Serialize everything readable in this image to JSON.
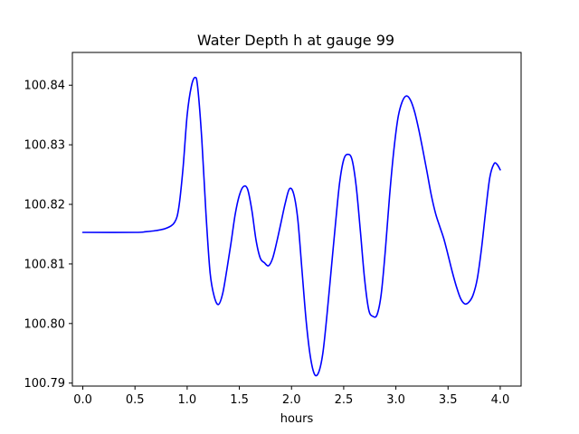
{
  "chart_data": {
    "type": "line",
    "title": "Water Depth h at gauge 99",
    "xlabel": "hours",
    "ylabel": "",
    "xlim": [
      -0.1,
      4.2
    ],
    "ylim": [
      100.7895,
      100.8455
    ],
    "xticks": [
      0.0,
      0.5,
      1.0,
      1.5,
      2.0,
      2.5,
      3.0,
      3.5,
      4.0
    ],
    "xtick_labels": [
      "0.0",
      "0.5",
      "1.0",
      "1.5",
      "2.0",
      "2.5",
      "3.0",
      "3.5",
      "4.0"
    ],
    "yticks": [
      100.79,
      100.8,
      100.81,
      100.82,
      100.83,
      100.84
    ],
    "ytick_labels": [
      "100.79",
      "100.80",
      "100.81",
      "100.82",
      "100.83",
      "100.84"
    ],
    "grid": false,
    "series": [
      {
        "color": "#0000ff",
        "x": [
          0.0,
          0.5,
          0.6,
          0.7,
          0.8,
          0.88,
          0.92,
          0.96,
          1.0,
          1.04,
          1.075,
          1.1,
          1.14,
          1.18,
          1.22,
          1.26,
          1.3,
          1.34,
          1.38,
          1.42,
          1.46,
          1.5,
          1.54,
          1.58,
          1.62,
          1.66,
          1.7,
          1.74,
          1.78,
          1.82,
          1.86,
          1.9,
          1.94,
          1.98,
          2.02,
          2.06,
          2.1,
          2.14,
          2.18,
          2.22,
          2.26,
          2.3,
          2.34,
          2.38,
          2.42,
          2.46,
          2.5,
          2.54,
          2.58,
          2.62,
          2.66,
          2.7,
          2.74,
          2.78,
          2.82,
          2.86,
          2.9,
          2.94,
          2.98,
          3.02,
          3.06,
          3.1,
          3.14,
          3.18,
          3.22,
          3.26,
          3.3,
          3.34,
          3.38,
          3.42,
          3.46,
          3.5,
          3.54,
          3.58,
          3.62,
          3.66,
          3.7,
          3.74,
          3.78,
          3.82,
          3.86,
          3.9,
          3.94,
          3.97,
          4.0
        ],
        "y": [
          100.8153,
          100.8153,
          100.8154,
          100.8156,
          100.816,
          100.817,
          100.8195,
          100.826,
          100.835,
          100.8398,
          100.8413,
          100.8398,
          100.831,
          100.8185,
          100.8085,
          100.8045,
          100.8032,
          100.805,
          100.809,
          100.8135,
          100.8183,
          100.8215,
          100.823,
          100.8225,
          100.819,
          100.814,
          100.811,
          100.8102,
          100.8097,
          100.811,
          100.8138,
          100.817,
          100.8202,
          100.8226,
          100.8218,
          100.8175,
          100.809,
          100.8005,
          100.7945,
          100.7915,
          100.7918,
          100.795,
          100.8015,
          100.809,
          100.8165,
          100.8235,
          100.8275,
          100.8284,
          100.8275,
          100.823,
          100.8155,
          100.8075,
          100.8023,
          100.8012,
          100.8015,
          100.805,
          100.8125,
          100.8215,
          100.829,
          100.8345,
          100.8372,
          100.8382,
          100.8375,
          100.8355,
          100.8325,
          100.829,
          100.8253,
          100.8215,
          100.8185,
          100.8163,
          100.8142,
          100.8115,
          100.8087,
          100.8062,
          100.8042,
          100.8033,
          100.8036,
          100.8048,
          100.8075,
          100.8125,
          100.8188,
          100.8245,
          100.8268,
          100.8267,
          100.8258
        ]
      }
    ]
  }
}
